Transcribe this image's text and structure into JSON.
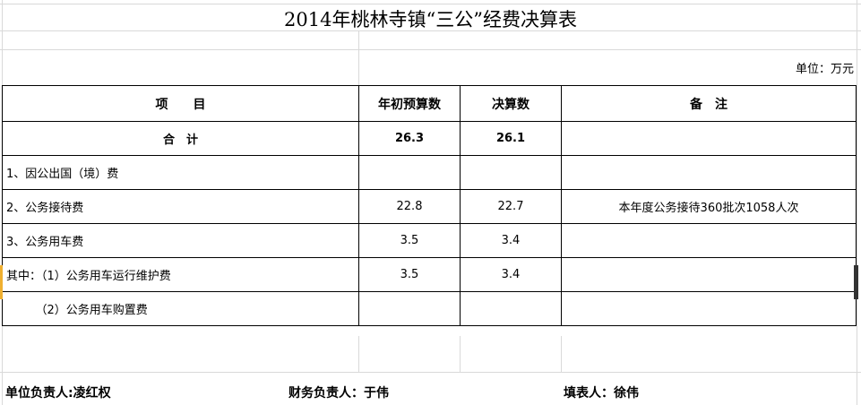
{
  "title": "2014年桃林寺镇“三公”经费决算表",
  "unit": "单位：万元",
  "headers": [
    "项　　目",
    "年初预算数",
    "决算数",
    "备　注"
  ],
  "rows": [
    {
      "item": "合　计",
      "budget": "26.3",
      "final": "26.1",
      "note": ""
    },
    {
      "item": "1、因公出国（境）费",
      "budget": "",
      "final": "",
      "note": ""
    },
    {
      "item": "2、公务接待费",
      "budget": "22.8",
      "final": "22.7",
      "note": "本年度公务接待360批次1058人次"
    },
    {
      "item": "3、公务用车费",
      "budget": "3.5",
      "final": "3.4",
      "note": ""
    },
    {
      "item": "其中：（1）公务用车运行维护费",
      "budget": "3.5",
      "final": "3.4",
      "note": ""
    },
    {
      "item": "　　　（2）公务用车购置费",
      "budget": "",
      "final": "",
      "note": ""
    }
  ],
  "footer": {
    "unit_head": "单位负责人:凌红权",
    "finance_head": "财务负责人：于伟",
    "preparer": "填表人：徐伟"
  }
}
